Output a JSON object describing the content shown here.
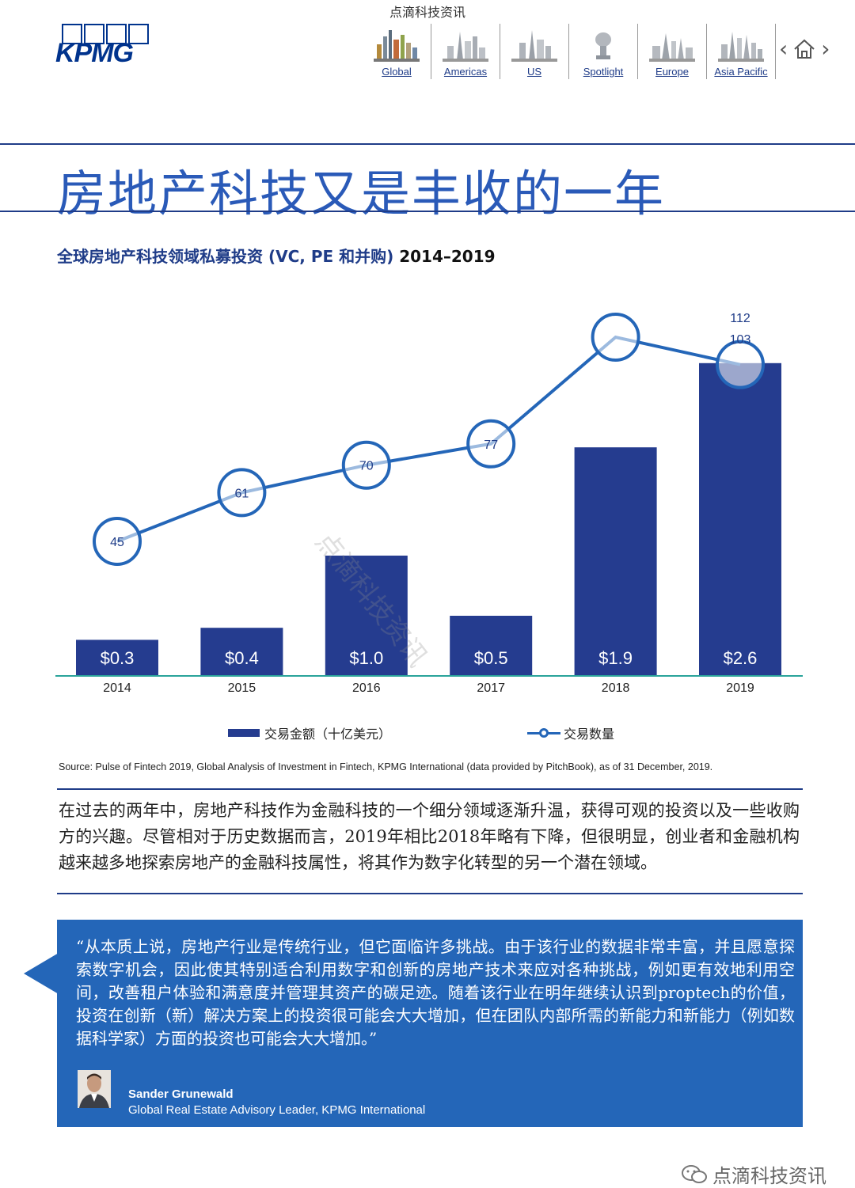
{
  "watermark_top": "点滴科技资讯",
  "logo": {
    "text": "KPMG"
  },
  "nav": {
    "items": [
      {
        "label": "Global",
        "icon": "skyline-global-icon"
      },
      {
        "label": "Americas",
        "icon": "skyline-americas-icon"
      },
      {
        "label": "US",
        "icon": "skyline-us-icon"
      },
      {
        "label": "Spotlight",
        "icon": "spotlight-icon"
      },
      {
        "label": "Europe",
        "icon": "skyline-europe-icon"
      },
      {
        "label": "Asia Pacific",
        "icon": "skyline-asia-pacific-icon"
      }
    ],
    "prev_icon": "‹",
    "next_icon": "›",
    "home_icon": "home-icon"
  },
  "page_title": "房地产科技又是丰收的一年",
  "chart_heading": {
    "main": "全球房地产科技领域私募投资 (VC, PE 和并购)",
    "years": "2014–2019"
  },
  "chart_data": {
    "type": "bar",
    "categories": [
      "2014",
      "2015",
      "2016",
      "2017",
      "2018",
      "2019"
    ],
    "series": [
      {
        "name": "交易金额（十亿美元）",
        "type": "bar",
        "values": [
          0.3,
          0.4,
          1.0,
          0.5,
          1.9,
          2.6
        ],
        "labels": [
          "$0.3",
          "$0.4",
          "$1.0",
          "$0.5",
          "$1.9",
          "$2.6"
        ],
        "color": "#253c8f"
      },
      {
        "name": "交易数量",
        "type": "line",
        "values": [
          45,
          61,
          70,
          77,
          112,
          103
        ],
        "labels": [
          "45",
          "61",
          "70",
          "77",
          "112",
          "103"
        ],
        "color": "#2466b8"
      }
    ],
    "axis_line_color": "#2aa39a",
    "grid": false,
    "legend": "bottom"
  },
  "diagonal_watermark": "点滴科技资讯",
  "source": "Source: Pulse of Fintech 2019, Global Analysis of Investment in Fintech, KPMG International (data provided by PitchBook), as of 31 December, 2019.",
  "body_text": "在过去的两年中，房地产科技作为金融科技的一个细分领域逐渐升温，获得可观的投资以及一些收购方的兴趣。尽管相对于历史数据而言，2019年相比2018年略有下降，但很明显，创业者和金融机构越来越多地探索房地产的金融科技属性，将其作为数字化转型的另一个潜在领域。",
  "quote": {
    "text": "“从本质上说，房地产行业是传统行业，但它面临许多挑战。由于该行业的数据非常丰富，并且愿意探索数字机会，因此使其特别适合利用数字和创新的房地产技术来应对各种挑战，例如更有效地利用空间，改善租户体验和满意度并管理其资产的碳足迹。随着该行业在明年继续认识到proptech的价值，投资在创新（新）解决方案上的投资很可能会大大增加，但在团队内部所需的新能力和新能力（例如数据科学家）方面的投资也可能会大大增加。”",
    "author": "Sander Grunewald",
    "role": "Global Real Estate Advisory Leader, KPMG International",
    "box_color": "#2466b8"
  },
  "footer_mark": {
    "icon": "wechat-icon",
    "text": "点滴科技资讯"
  }
}
